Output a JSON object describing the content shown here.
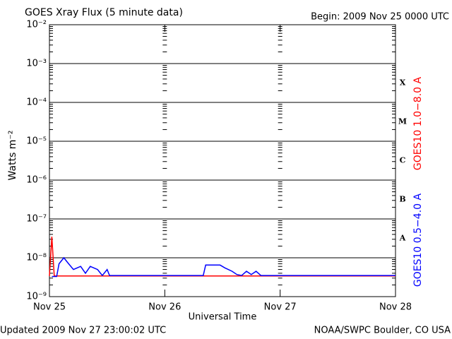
{
  "chart_data": {
    "type": "line",
    "title": "GOES Xray Flux (5 minute data)",
    "begin_label": "Begin:  2009 Nov 25 0000 UTC",
    "y_label": "Watts m⁻²",
    "x_label": "Universal Time",
    "updated": "Updated 2009 Nov 27 23:00:02 UTC",
    "source": "NOAA/SWPC Boulder, CO USA",
    "flare_classes": [
      "X",
      "M",
      "C",
      "B",
      "A"
    ],
    "log_y": true,
    "grid": true,
    "legend": "right",
    "ylim": [
      1e-09,
      0.01
    ],
    "yticks": [
      {
        "value": 1e-09,
        "label": "10⁻⁹"
      },
      {
        "value": 1e-08,
        "label": "10⁻⁸"
      },
      {
        "value": 1e-07,
        "label": "10⁻⁷"
      },
      {
        "value": 1e-06,
        "label": "10⁻⁶"
      },
      {
        "value": 1e-05,
        "label": "10⁻⁵"
      },
      {
        "value": 0.0001,
        "label": "10⁻⁴"
      },
      {
        "value": 0.001,
        "label": "10⁻³"
      },
      {
        "value": 0.01,
        "label": "10⁻²"
      }
    ],
    "xlim": [
      "2009-11-25 00:00",
      "2009-11-28 00:00"
    ],
    "xticks": [
      {
        "value": "2009-11-25 00:00",
        "label": "Nov 25"
      },
      {
        "value": "2009-11-26 00:00",
        "label": "Nov 26"
      },
      {
        "value": "2009-11-27 00:00",
        "label": "Nov 27"
      },
      {
        "value": "2009-11-28 00:00",
        "label": "Nov 28"
      }
    ],
    "series": [
      {
        "name": "GOES10 1.0−8.0 A",
        "color": "#ff0000",
        "x": [
          "2009-11-25 00:00",
          "2009-11-25 00:30",
          "2009-11-25 01:00",
          "2009-11-28 00:00"
        ],
        "values": [
          3.4e-09,
          3.5e-08,
          3.4e-09,
          3.4e-09
        ]
      },
      {
        "name": "GOES10 0.5−4.0 A",
        "color": "#0000ff",
        "x": [
          "2009-11-25 00:30",
          "2009-11-25 01:30",
          "2009-11-25 02:00",
          "2009-11-25 03:00",
          "2009-11-25 04:00",
          "2009-11-25 05:00",
          "2009-11-25 06:30",
          "2009-11-25 07:30",
          "2009-11-25 08:30",
          "2009-11-25 10:00",
          "2009-11-25 11:00",
          "2009-11-25 12:00",
          "2009-11-25 12:30",
          "2009-11-26 08:00",
          "2009-11-26 08:30",
          "2009-11-26 11:30",
          "2009-11-26 12:30",
          "2009-11-26 14:00",
          "2009-11-26 15:00",
          "2009-11-26 16:00",
          "2009-11-26 17:00",
          "2009-11-26 18:00",
          "2009-11-26 19:00",
          "2009-11-26 20:00",
          "2009-11-28 00:00"
        ],
        "values": [
          3.3e-09,
          3.3e-09,
          7e-09,
          1e-08,
          7e-09,
          5e-09,
          6e-09,
          4e-09,
          6e-09,
          5e-09,
          3.5e-09,
          5e-09,
          3.5e-09,
          3.5e-09,
          6.5e-09,
          6.5e-09,
          5.5e-09,
          4.5e-09,
          3.7e-09,
          3.5e-09,
          4.5e-09,
          3.7e-09,
          4.5e-09,
          3.5e-09,
          3.5e-09
        ]
      }
    ]
  }
}
